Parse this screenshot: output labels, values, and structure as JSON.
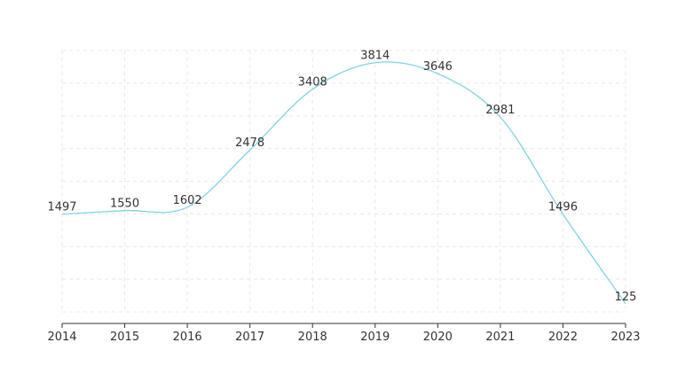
{
  "chart_data": {
    "type": "line",
    "smooth": true,
    "x": [
      "2014",
      "2015",
      "2016",
      "2017",
      "2018",
      "2019",
      "2020",
      "2021",
      "2022",
      "2023"
    ],
    "series": [
      {
        "values": [
          1497,
          1550,
          1602,
          2478,
          3408,
          3814,
          3646,
          2981,
          1496,
          125
        ]
      }
    ],
    "ylim": [
      0,
      4000
    ],
    "grid": true,
    "data_labels": true,
    "colors": {
      "line": "#7fd3e3",
      "grid": "#e8e8e8",
      "axis": "#333333",
      "text": "#333333"
    }
  }
}
